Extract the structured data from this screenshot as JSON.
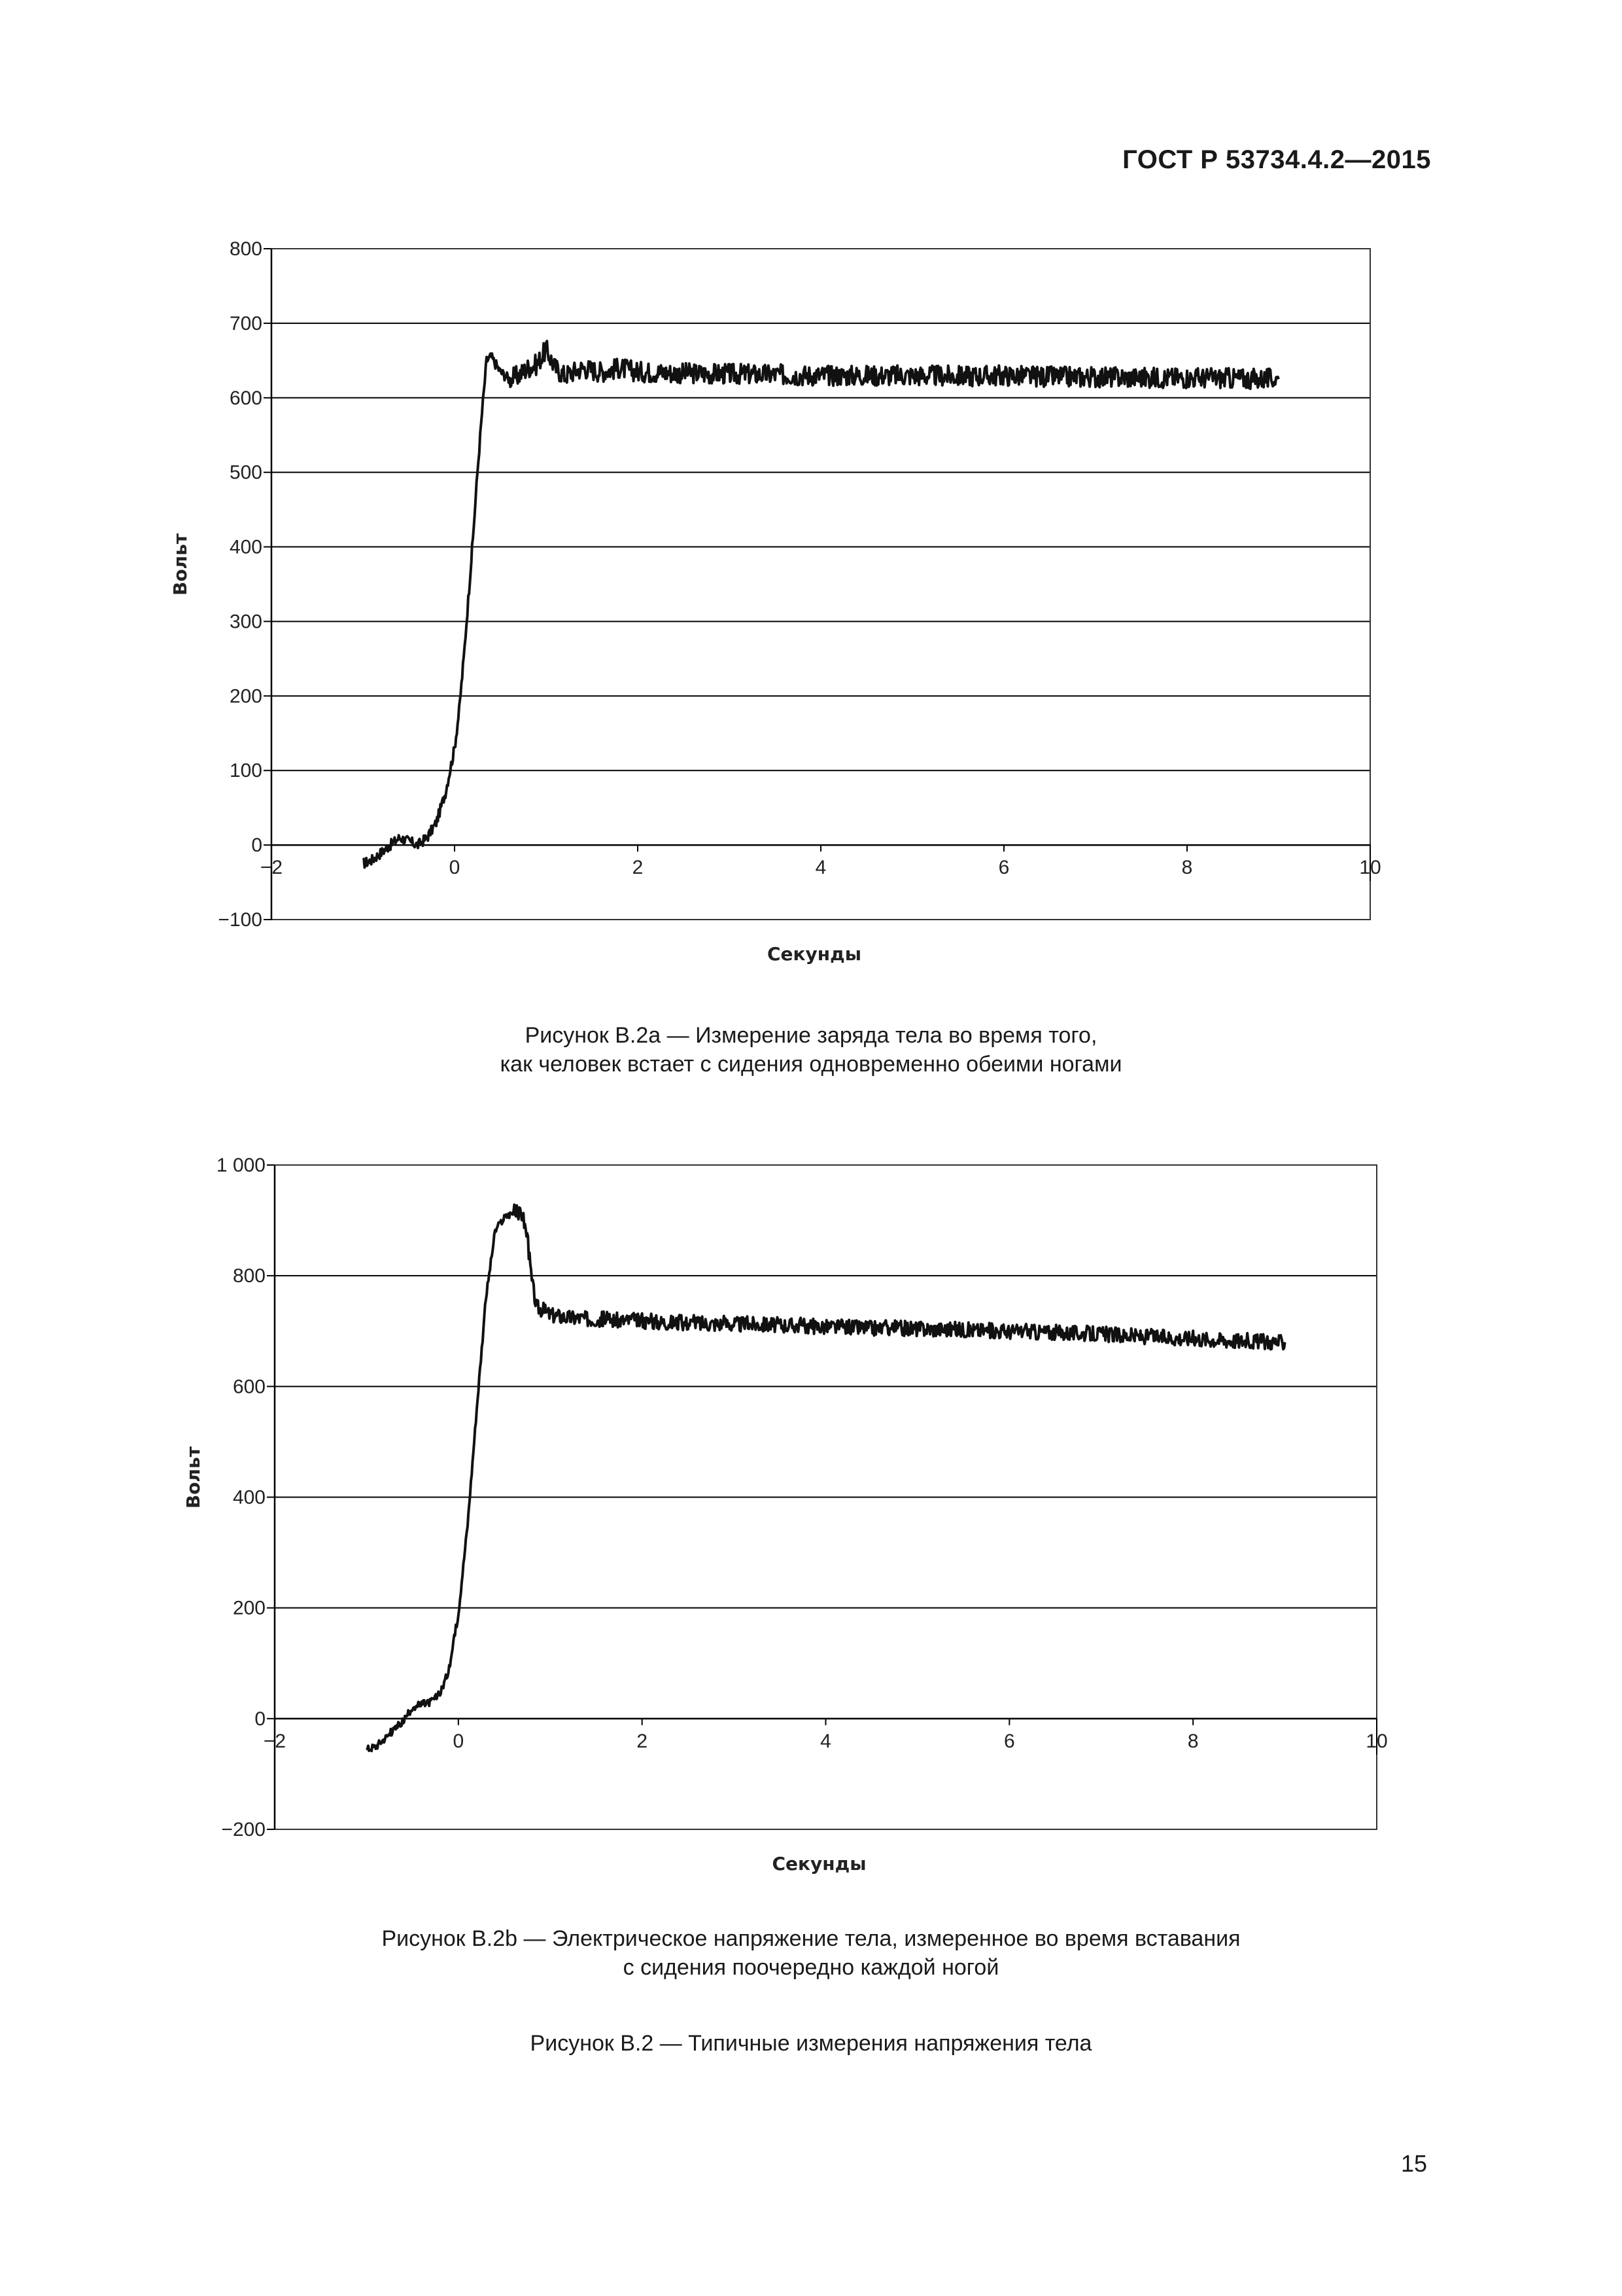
{
  "header": {
    "doc_number": "ГОСТ Р 53734.4.2—2015"
  },
  "page": {
    "number": "15"
  },
  "captions": {
    "figure_a_line1": "Рисунок В.2а — Измерение заряда тела во время того,",
    "figure_a_line2": "как человек встает с сидения одновременно обеими ногами",
    "figure_b_line1": "Рисунок В.2b — Электрическое напряжение тела, измеренное во время вставания",
    "figure_b_line2": "с сидения поочередно каждой ногой",
    "figure_main": "Рисунок В.2 — Типичные измерения напряжения тела"
  },
  "colors": {
    "line": "#111111",
    "grid": "#000000",
    "text": "#1a1a1a"
  },
  "chart_data": [
    {
      "type": "line",
      "xlabel": "Секунды",
      "ylabel": "Вольт",
      "xlim": [
        -2,
        10
      ],
      "ylim": [
        -100,
        800
      ],
      "xticks": [
        -2,
        0,
        2,
        4,
        6,
        8,
        10
      ],
      "xtick_labels": [
        "−2",
        "0",
        "2",
        "4",
        "6",
        "8",
        "10"
      ],
      "yticks": [
        -100,
        0,
        100,
        200,
        300,
        400,
        500,
        600,
        700,
        800
      ],
      "ytick_labels": [
        "−100",
        "0",
        "100",
        "200",
        "300",
        "400",
        "500",
        "600",
        "700",
        "800"
      ],
      "grid": "horizontal",
      "series": [
        {
          "x": [
            -1.0,
            -0.9,
            -0.8,
            -0.7,
            -0.6,
            -0.5,
            -0.4,
            -0.3,
            -0.2,
            -0.1,
            0.0,
            0.05,
            0.1,
            0.15,
            0.2,
            0.25,
            0.3,
            0.35,
            0.4,
            0.5,
            0.6,
            0.7,
            0.8,
            0.9,
            1.0,
            1.1,
            1.2,
            1.4,
            1.6,
            1.8,
            2.0,
            2.5,
            3.0,
            3.5,
            4.0,
            4.5,
            5.0,
            5.5,
            6.0,
            6.5,
            7.0,
            7.5,
            8.0,
            8.5,
            9.0
          ],
          "y": [
            -25,
            -20,
            -10,
            0,
            10,
            5,
            0,
            10,
            30,
            70,
            130,
            180,
            250,
            330,
            410,
            500,
            580,
            650,
            655,
            635,
            625,
            630,
            640,
            645,
            665,
            640,
            630,
            640,
            635,
            640,
            635,
            633,
            632,
            631,
            630,
            630,
            630,
            629,
            630,
            628,
            628,
            627,
            627,
            626,
            625
          ]
        }
      ]
    },
    {
      "type": "line",
      "xlabel": "Секунды",
      "ylabel": "Вольт",
      "xlim": [
        -2,
        10
      ],
      "ylim": [
        -200,
        1000
      ],
      "xticks": [
        -2,
        0,
        2,
        4,
        6,
        8,
        10
      ],
      "xtick_labels": [
        "−2",
        "0",
        "2",
        "4",
        "6",
        "8",
        "10"
      ],
      "yticks": [
        -200,
        0,
        200,
        400,
        600,
        800,
        1000
      ],
      "ytick_labels": [
        "−200",
        "0",
        "200",
        "400",
        "600",
        "800",
        "1 000"
      ],
      "grid": "horizontal",
      "series": [
        {
          "x": [
            -1.0,
            -0.9,
            -0.8,
            -0.7,
            -0.6,
            -0.5,
            -0.4,
            -0.3,
            -0.2,
            -0.1,
            0.0,
            0.1,
            0.2,
            0.3,
            0.4,
            0.5,
            0.6,
            0.7,
            0.75,
            0.8,
            0.85,
            0.9,
            1.0,
            1.2,
            1.5,
            2.0,
            2.5,
            3.0,
            3.5,
            4.0,
            4.5,
            5.0,
            5.5,
            6.0,
            6.5,
            7.0,
            7.5,
            8.0,
            8.5,
            9.0
          ],
          "y": [
            -55,
            -50,
            -35,
            -20,
            -5,
            20,
            25,
            30,
            45,
            90,
            190,
            350,
            560,
            760,
            880,
            905,
            915,
            910,
            870,
            790,
            745,
            740,
            730,
            725,
            722,
            718,
            715,
            713,
            712,
            708,
            706,
            705,
            703,
            700,
            698,
            695,
            690,
            687,
            683,
            680
          ]
        }
      ]
    }
  ]
}
